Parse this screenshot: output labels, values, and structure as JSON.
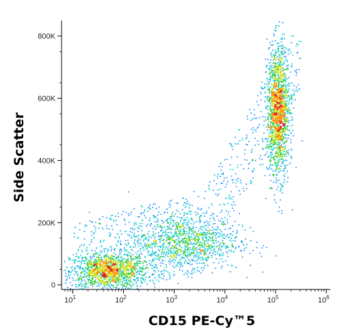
{
  "chart_data": {
    "type": "scatter",
    "title": "",
    "xlabel": "CD15 PE-Cy™5",
    "ylabel": "Side Scatter",
    "x_scale": "log",
    "xlim": [
      6,
      1200000
    ],
    "ylim": [
      -15000,
      850000
    ],
    "grid": false,
    "x_ticks": [
      {
        "value": 10,
        "label": "10",
        "exp": "1"
      },
      {
        "value": 100,
        "label": "10",
        "exp": "2"
      },
      {
        "value": 1000,
        "label": "10",
        "exp": "3"
      },
      {
        "value": 10000,
        "label": "10",
        "exp": "4"
      },
      {
        "value": 100000,
        "label": "10",
        "exp": "5"
      },
      {
        "value": 1000000,
        "label": "10",
        "exp": "6"
      }
    ],
    "y_ticks": [
      {
        "value": 0,
        "label": "0"
      },
      {
        "value": 200000,
        "label": "200K"
      },
      {
        "value": 400000,
        "label": "400K"
      },
      {
        "value": 600000,
        "label": "600K"
      },
      {
        "value": 800000,
        "label": "800K"
      }
    ],
    "populations": [
      {
        "x_center": 50,
        "y_center": 45000,
        "x_spread": 0.38,
        "y_spread": 30000,
        "count": 1300
      },
      {
        "x_center": 1500,
        "y_center": 140000,
        "x_spread": 0.55,
        "y_spread": 45000,
        "count": 1100
      },
      {
        "x_center": 110000,
        "y_center": 560000,
        "x_spread": 0.11,
        "y_spread": 105000,
        "count": 1600
      }
    ],
    "density_colors": [
      "#1a1ad6",
      "#0080ff",
      "#00c8c8",
      "#33cc33",
      "#ccdd00",
      "#ff8c00",
      "#e02020"
    ]
  }
}
